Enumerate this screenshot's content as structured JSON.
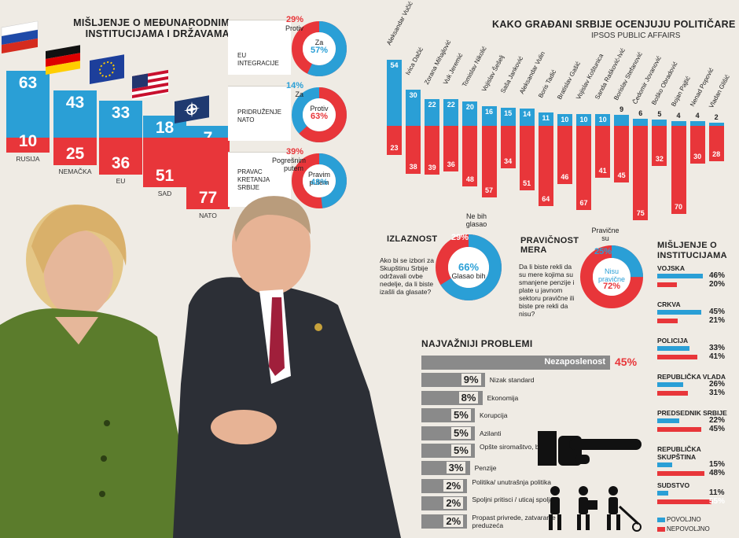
{
  "intl": {
    "title": "MIŠLJENJE O MEĐUNARODNIM INSTITUCIJAMA I DRŽAVAMA",
    "items": [
      {
        "label": "RUSIJA",
        "positive": 63,
        "negative": 10,
        "flag": "russia-flag-icon"
      },
      {
        "label": "NEMAČKA",
        "positive": 43,
        "negative": 25,
        "flag": "germany-flag-icon"
      },
      {
        "label": "EU",
        "positive": 33,
        "negative": 36,
        "flag": "eu-flag-icon"
      },
      {
        "label": "SAD",
        "positive": 18,
        "negative": 51,
        "flag": "usa-flag-icon"
      },
      {
        "label": "NATO",
        "positive": 7,
        "negative": 77,
        "flag": "nato-flag-icon"
      }
    ]
  },
  "donuts": [
    {
      "caption": "EU INTEGRACIJE",
      "top_value": "29%",
      "top_text": "Protiv",
      "inner_value": "57%",
      "inner_text": "Za",
      "share": 0.57,
      "main_color": "#2a9fd6",
      "other_color": "#e8363a"
    },
    {
      "caption": "PRIDRUŽENJE NATO",
      "top_value": "14%",
      "top_text": "Za",
      "inner_value": "63%",
      "inner_text": "Protiv",
      "share": 0.63,
      "main_color": "#e8363a",
      "other_color": "#2a9fd6"
    },
    {
      "caption": "PRAVAC KRETANJA SRBIJE",
      "top_value": "39%",
      "top_text": "Pogrešnim putem",
      "inner_value": "48%",
      "inner_text": "Pravim putem",
      "share": 0.48,
      "main_color": "#2a9fd6",
      "other_color": "#e8363a"
    }
  ],
  "politicians": {
    "title": "KAKO GRAĐANI SRBIJE OCENJUJU POLITIČARE",
    "source": "IPSOS PUBLIC AFFAIRS",
    "items": [
      {
        "name": "Aleksandar Vučić",
        "positive": 54,
        "negative": 23
      },
      {
        "name": "Ivica Dačić",
        "positive": 30,
        "negative": 38
      },
      {
        "name": "Zorana Mihajlović",
        "positive": 22,
        "negative": 39
      },
      {
        "name": "Vuk Jeremić",
        "positive": 22,
        "negative": 36
      },
      {
        "name": "Tomislav Nikolić",
        "positive": 20,
        "negative": 48
      },
      {
        "name": "Vojislav Šešelj",
        "positive": 16,
        "negative": 57
      },
      {
        "name": "Saša Janković",
        "positive": 15,
        "negative": 34
      },
      {
        "name": "Aleksandar Vulin",
        "positive": 14,
        "negative": 51
      },
      {
        "name": "Boris Tadić",
        "positive": 11,
        "negative": 64
      },
      {
        "name": "Bratislav Gašić",
        "positive": 10,
        "negative": 46
      },
      {
        "name": "Vojislav Koštunica",
        "positive": 10,
        "negative": 67
      },
      {
        "name": "Sanda Rašković-Ivić",
        "positive": 10,
        "negative": 41
      },
      {
        "name": "Borislav Stefanović",
        "positive": 9,
        "negative": 45
      },
      {
        "name": "Čedomir Jovanović",
        "positive": 6,
        "negative": 75
      },
      {
        "name": "Boško Obradović",
        "positive": 5,
        "negative": 32
      },
      {
        "name": "Bojan Pajtić",
        "positive": 4,
        "negative": 70
      },
      {
        "name": "Nenad Popović",
        "positive": 4,
        "negative": 30
      },
      {
        "name": "Vladan Glišić",
        "positive": 2,
        "negative": 28
      }
    ]
  },
  "turnout": {
    "title": "IZLAZNOST",
    "question": "Ako bi se izbori za Skupštinu Srbije održavali ovbe nedelje, da li biste izašli da glasate?",
    "outer_value": "29%",
    "outer_text": "Ne bih glasao",
    "inner_value": "66%",
    "inner_text": "Glasao bih",
    "share": 0.66
  },
  "fairness": {
    "title": "PRAVIČNOST MERA",
    "question": "Da li biste rekli da su mere kojima su smanjene penzije i plate u javnom sektoru pravične ili biste pre rekli da nisu?",
    "top_text": "Pravične su",
    "blue_value": "25%",
    "red_value": "72%",
    "red_text": "Nisu pravične",
    "share": 0.25
  },
  "problems": {
    "title": "NAJVAŽNIJI PROBLEMI",
    "items": [
      {
        "label": "Nezaposlenost",
        "value": "45%",
        "pct": 45
      },
      {
        "label": "Nizak standard",
        "value": "9%",
        "pct": 9
      },
      {
        "label": "Ekonomija",
        "value": "8%",
        "pct": 8
      },
      {
        "label": "Korupcija",
        "value": "5%",
        "pct": 5
      },
      {
        "label": "Azilanti",
        "value": "5%",
        "pct": 5
      },
      {
        "label": "Opšte siromaštvo, beda",
        "value": "5%",
        "pct": 5
      },
      {
        "label": "Penzije",
        "value": "3%",
        "pct": 3
      },
      {
        "label": "Politika/ unutrašnja politika",
        "value": "2%",
        "pct": 2
      },
      {
        "label": "Spoljni pritisci / uticaj spolja",
        "value": "2%",
        "pct": 2
      },
      {
        "label": "Propast privrede, zatvaranje preduzeća",
        "value": "2%",
        "pct": 2
      }
    ]
  },
  "institutions": {
    "title": "MIŠLJENJE O INSTITUCIJAMA",
    "items": [
      {
        "label": "VOJSKA",
        "positive": "46%",
        "negative": "20%",
        "p": 46,
        "n": 20
      },
      {
        "label": "CRKVA",
        "positive": "45%",
        "negative": "21%",
        "p": 45,
        "n": 21
      },
      {
        "label": "POLICIJA",
        "positive": "33%",
        "negative": "41%",
        "p": 33,
        "n": 41
      },
      {
        "label": "REPUBLIČKA VLADA",
        "positive": "26%",
        "negative": "31%",
        "p": 26,
        "n": 31
      },
      {
        "label": "PREDSEDNIK SRBIJE",
        "positive": "22%",
        "negative": "45%",
        "p": 22,
        "n": 45
      },
      {
        "label": "REPUBLIČKA SKUPŠTINA",
        "positive": "15%",
        "negative": "48%",
        "p": 15,
        "n": 48
      },
      {
        "label": "SUDSTVO",
        "positive": "11%",
        "negative": "55%",
        "p": 11,
        "n": 55
      }
    ],
    "legend_positive": "POVOLJNO",
    "legend_negative": "NEPOVOLJNO"
  }
}
